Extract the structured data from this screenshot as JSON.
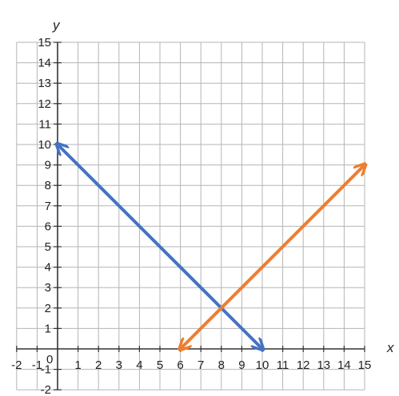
{
  "chart_data": {
    "type": "line",
    "title": "",
    "xlabel": "x",
    "ylabel": "y",
    "xlim": [
      -2,
      15
    ],
    "ylim": [
      -2,
      15
    ],
    "grid": true,
    "x_ticks": [
      "-2",
      "-1",
      "1",
      "2",
      "3",
      "4",
      "5",
      "6",
      "7",
      "8",
      "9",
      "10",
      "11",
      "12",
      "13",
      "14",
      "15"
    ],
    "y_ticks": [
      "-2",
      "-1",
      "1",
      "2",
      "3",
      "4",
      "5",
      "6",
      "7",
      "8",
      "9",
      "10",
      "11",
      "12",
      "13",
      "14",
      "15"
    ],
    "origin_label": "0",
    "series": [
      {
        "color": "#4472c4",
        "style": "double-arrow",
        "x": [
          0,
          10
        ],
        "y": [
          10,
          0
        ]
      },
      {
        "color": "#ed7d31",
        "style": "double-arrow",
        "x": [
          6,
          15
        ],
        "y": [
          0,
          9
        ]
      }
    ]
  }
}
